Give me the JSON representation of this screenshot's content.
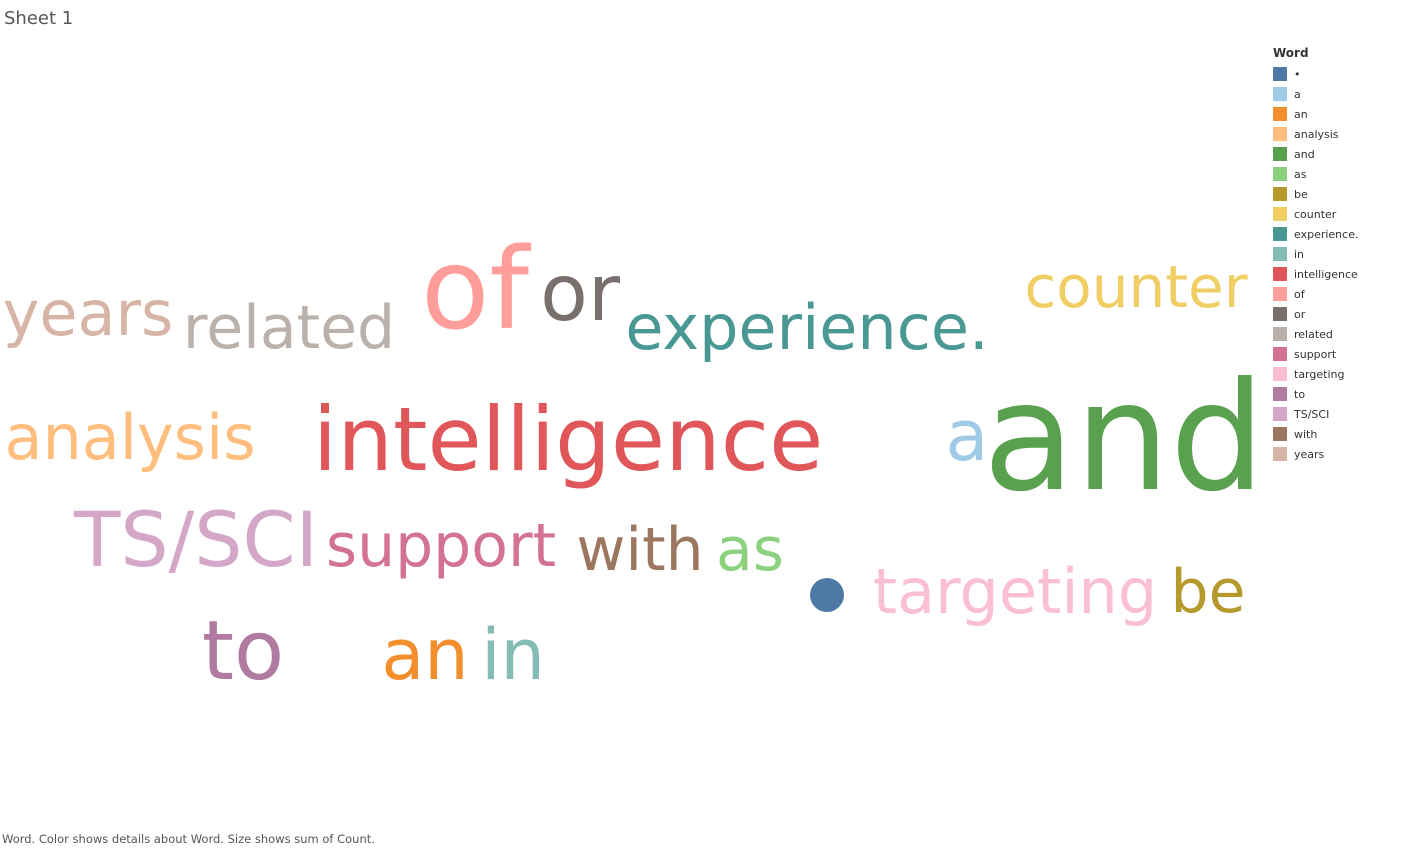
{
  "sheet": {
    "title": "Sheet 1"
  },
  "legend": {
    "title": "Word"
  },
  "caption": "Word.  Color shows details about Word.  Size shows sum of Count.",
  "chart_data": {
    "type": "word_cloud",
    "color_field": "Word",
    "size_field": "sum of Count",
    "words": [
      {
        "word": "•",
        "color": "#4e79a7",
        "count": 5
      },
      {
        "word": "a",
        "color": "#a0cbe8",
        "count": 3
      },
      {
        "word": "an",
        "color": "#f28e2b",
        "count": 3
      },
      {
        "word": "analysis",
        "color": "#ffbe7d",
        "count": 3
      },
      {
        "word": "and",
        "color": "#59a14f",
        "count": 9
      },
      {
        "word": "as",
        "color": "#8cd17d",
        "count": 3
      },
      {
        "word": "be",
        "color": "#b6992d",
        "count": 3
      },
      {
        "word": "counter",
        "color": "#f1ce63",
        "count": 3
      },
      {
        "word": "experience.",
        "color": "#499894",
        "count": 3
      },
      {
        "word": "in",
        "color": "#86bcb6",
        "count": 3
      },
      {
        "word": "intelligence",
        "color": "#e15759",
        "count": 5
      },
      {
        "word": "of",
        "color": "#ff9d9a",
        "count": 6
      },
      {
        "word": "or",
        "color": "#79706e",
        "count": 4
      },
      {
        "word": "related",
        "color": "#bab0ac",
        "count": 3
      },
      {
        "word": "support",
        "color": "#d37295",
        "count": 3
      },
      {
        "word": "targeting",
        "color": "#fabfd2",
        "count": 3
      },
      {
        "word": "to",
        "color": "#b07aa1",
        "count": 4
      },
      {
        "word": "TS/SCI",
        "color": "#d4a6c8",
        "count": 4
      },
      {
        "word": "with",
        "color": "#9d7660",
        "count": 3
      },
      {
        "word": "years",
        "color": "#d7b5a6",
        "count": 3
      }
    ]
  }
}
